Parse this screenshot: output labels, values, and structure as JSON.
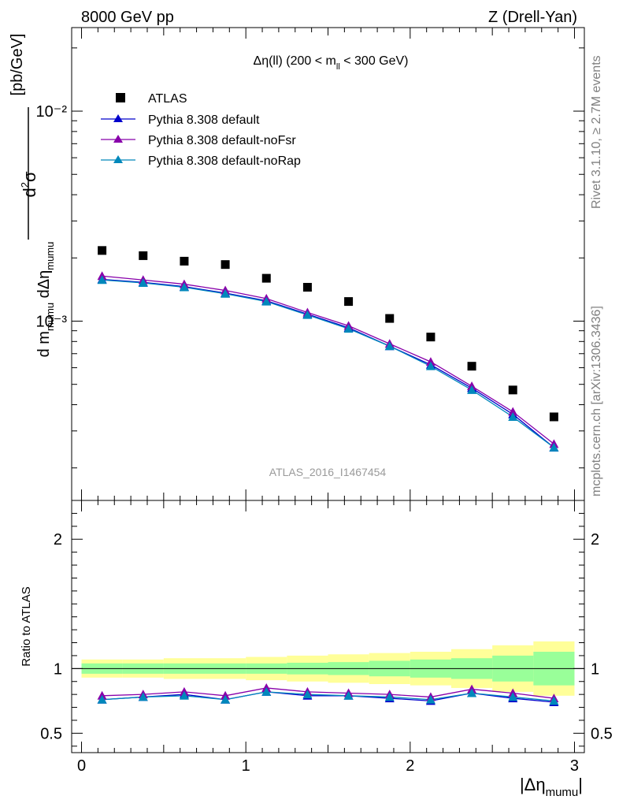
{
  "header": {
    "left": "8000 GeV pp",
    "right": "Z (Drell-Yan)"
  },
  "side_labels": {
    "rivet": "Rivet 3.1.10, ≥ 2.7M events",
    "mcplots": "mcplots.cern.ch [arXiv:1306.3436]"
  },
  "analysis_id": "ATLAS_2016_I1467454",
  "colors": {
    "atlas": "#000000",
    "default": "#0000cc",
    "noFsr": "#8800aa",
    "noRap": "#0088bb",
    "band_inner": "#99ff99",
    "band_outer": "#ffff99"
  },
  "chart_data": [
    {
      "type": "scatter",
      "panel": "main",
      "title": "Δη(ll) (200 < m_ll < 300 GeV)",
      "ylabel": "d²σ / d m_mumu dΔη_mumu [pb/GeV]",
      "yscale": "log",
      "ylim": [
        0.00014,
        0.025
      ],
      "xlim": [
        -0.06,
        3.06
      ],
      "y_ticks": [
        {
          "value": 0.001,
          "label": "10⁻³"
        },
        {
          "value": 0.01,
          "label": "10⁻²"
        }
      ],
      "legend_position": "top-left",
      "x": [
        0.125,
        0.375,
        0.625,
        0.875,
        1.125,
        1.375,
        1.625,
        1.875,
        2.125,
        2.375,
        2.625,
        2.875
      ],
      "series": [
        {
          "name": "ATLAS",
          "marker": "square",
          "values": [
            0.00217,
            0.00205,
            0.00193,
            0.00186,
            0.0016,
            0.00145,
            0.00124,
            0.00103,
            0.00084,
            0.00061,
            0.00047,
            0.00035
          ]
        },
        {
          "name": "Pythia 8.308 default",
          "marker": "triangle",
          "values": [
            0.00158,
            0.00153,
            0.00146,
            0.00136,
            0.00125,
            0.00108,
            0.00093,
            0.00076,
            0.00062,
            0.00048,
            0.00036,
            0.00025
          ]
        },
        {
          "name": "Pythia 8.308 default-noFsr",
          "marker": "triangle",
          "values": [
            0.00164,
            0.00157,
            0.0015,
            0.0014,
            0.00128,
            0.0011,
            0.00095,
            0.00078,
            0.00064,
            0.00049,
            0.00037,
            0.00026
          ]
        },
        {
          "name": "Pythia 8.308 default-noRap",
          "marker": "triangle",
          "values": [
            0.00157,
            0.00152,
            0.00145,
            0.00135,
            0.00124,
            0.00107,
            0.00092,
            0.00076,
            0.00061,
            0.00047,
            0.00035,
            0.00025
          ]
        }
      ]
    },
    {
      "type": "line",
      "panel": "ratio",
      "ylabel": "Ratio to ATLAS",
      "xlabel": "|Δη_mumu|",
      "ylim": [
        0.35,
        2.3
      ],
      "xlim": [
        -0.06,
        3.06
      ],
      "x_ticks": [
        0,
        1,
        2,
        3
      ],
      "y_ticks": [
        0.5,
        1,
        2
      ],
      "x": [
        0.125,
        0.375,
        0.625,
        0.875,
        1.125,
        1.375,
        1.625,
        1.875,
        2.125,
        2.375,
        2.625,
        2.875
      ],
      "series": [
        {
          "name": "Pythia 8.308 default",
          "values": [
            0.76,
            0.78,
            0.8,
            0.76,
            0.82,
            0.79,
            0.79,
            0.77,
            0.75,
            0.81,
            0.77,
            0.74
          ]
        },
        {
          "name": "Pythia 8.308 default-noFsr",
          "values": [
            0.79,
            0.8,
            0.82,
            0.79,
            0.85,
            0.82,
            0.81,
            0.8,
            0.78,
            0.84,
            0.81,
            0.77
          ]
        },
        {
          "name": "Pythia 8.308 default-noRap",
          "values": [
            0.76,
            0.78,
            0.79,
            0.76,
            0.82,
            0.8,
            0.79,
            0.78,
            0.76,
            0.81,
            0.78,
            0.75
          ]
        }
      ],
      "uncertainty_bands": {
        "x_edges": [
          0,
          0.25,
          0.5,
          0.75,
          1.0,
          1.25,
          1.5,
          1.75,
          2.0,
          2.25,
          2.5,
          2.75,
          3.0
        ],
        "inner": [
          0.04,
          0.04,
          0.04,
          0.04,
          0.04,
          0.045,
          0.05,
          0.06,
          0.07,
          0.08,
          0.1,
          0.13
        ],
        "outer": [
          0.07,
          0.07,
          0.08,
          0.08,
          0.09,
          0.1,
          0.11,
          0.12,
          0.13,
          0.15,
          0.18,
          0.21
        ]
      }
    }
  ]
}
